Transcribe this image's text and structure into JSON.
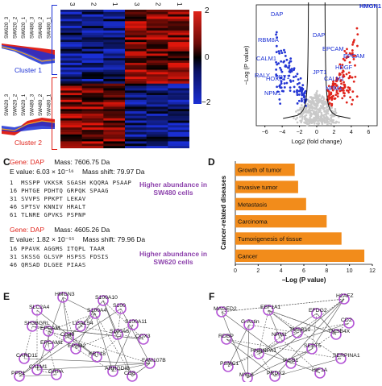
{
  "panelA": {
    "cluster1_label": "Cluster 1",
    "cluster2_label": "Cluster 2",
    "sample_labels": [
      "SW620_3",
      "SW620_2",
      "SW620_1",
      "SW480_3",
      "SW480_2",
      "SW480_1"
    ],
    "column_numbers": [
      "3",
      "2",
      "1",
      "3",
      "2",
      "1"
    ],
    "colorbar_ticks": [
      "2",
      "0",
      "−2"
    ],
    "colors": {
      "high": "#e0241b",
      "low": "#1a2fd4",
      "mid": "#000000"
    }
  },
  "panelB": {
    "xlabel": "Log2 (fold change)",
    "ylabel": "−Log (P value)",
    "xticks": [
      "−6",
      "−4",
      "−2",
      "0",
      "2",
      "4",
      "6"
    ],
    "labels_left": [
      "DAP",
      "RBM8A",
      "CALM1",
      "RALY",
      "HOXB",
      "NPM1",
      "JPT1"
    ],
    "labels_right": [
      "HMGN1",
      "DAP",
      "EPCAM",
      "HDGF",
      "CALM1",
      "NPM1",
      "EPCAM",
      "JPT1"
    ]
  },
  "panelC": {
    "letter": "C",
    "block1": {
      "gene_prefix": "Gene: ",
      "gene": "DAP",
      "mass": "Mass: 7606.75 Da",
      "evalue": "E value: 6.03 × 10⁻¹⁶",
      "shift": "Mass shift: 79.97 Da",
      "lines": [
        "1  MSSPP VKKSR SGASH KQQRA PSAAP",
        "16 PHTGE PDHTQ GRPQK SPAAG",
        "31 SVVPS PPKPT LEKAV",
        "46 SPTSV KNNIV HRALT",
        "61 TLNRE GPVKS PSPNP"
      ],
      "caption": "Higher abundance in SW480 cells"
    },
    "block2": {
      "gene_prefix": "Gene: ",
      "gene": "DAP",
      "mass": "Mass: 4605.26 Da",
      "evalue": "E value: 1.82 × 10⁻⁵⁵",
      "shift": "Mass shift: 79.96 Da",
      "lines": [
        "16 PPAVK AGGMS ITQPL TAAR",
        "31 SKSSG GLSVP HSPSS FDSIS",
        "46 QRSAD DLGEE PIAAS"
      ],
      "caption": "Higher abundance in SW620 cells"
    }
  },
  "panelD": {
    "letter": "D",
    "ylabel": "Cancer-related diseases",
    "xlabel": "−Log (P value)",
    "bar_color": "#f28c1b",
    "chart_data": {
      "type": "bar",
      "orientation": "horizontal",
      "categories": [
        "Growth of tumor",
        "Invasive tumor",
        "Metastasis",
        "Carcinoma",
        "Tumorigenesis of tissue",
        "Cancer"
      ],
      "values": [
        5.2,
        5.5,
        6.2,
        8.0,
        9.3,
        11.3
      ],
      "xticks": [
        "0",
        "2",
        "4",
        "6",
        "8",
        "10",
        "12"
      ],
      "xlim": [
        0,
        12
      ]
    }
  },
  "panelE": {
    "letter": "E",
    "nodes": [
      "HMGN3",
      "S100A10",
      "SLC2A4",
      "S100A4",
      "S100",
      "SH3BGRL",
      "EPCAM",
      "LGALS4",
      "CD49",
      "S100A11",
      "S100A6",
      "EPCAM1",
      "EPHB2",
      "COX3",
      "CARD11",
      "KRT18",
      "CALM1",
      "FAM107B",
      "GRPA",
      "ARHGDIB",
      "CD8",
      "PPP1"
    ]
  },
  "panelF": {
    "letter": "F",
    "nodes": [
      "H2AFZ",
      "MAGED2",
      "EEF1A1",
      "EFDG2",
      "CD2",
      "G-Actin",
      "TMSB10",
      "TMSB4X",
      "NPM1",
      "RDBP",
      "SEPT5",
      "HNRNPA1",
      "IASB1",
      "PSMC1",
      "SERPINA1",
      "PRDX2",
      "HIF1A",
      "MYL6"
    ]
  }
}
